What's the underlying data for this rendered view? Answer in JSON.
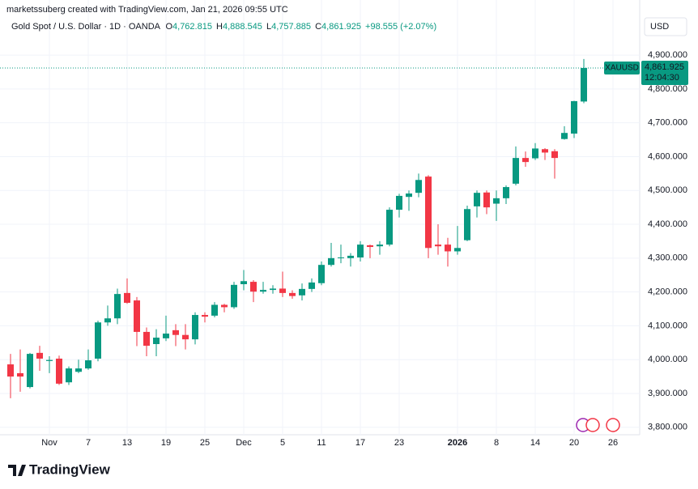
{
  "attribution": "marketssuberg created with TradingView.com, Jan 21, 2026 09:55 UTC",
  "currency": "USD",
  "brand": "TradingView",
  "legend": {
    "symbol": "Gold Spot / U.S. Dollar · 1D · OANDA",
    "open_key": "O",
    "open": "4,762.815",
    "high_key": "H",
    "high": "4,888.545",
    "low_key": "L",
    "low": "4,757.885",
    "close_key": "C",
    "close": "4,861.925",
    "change": "+98.555 (+2.07%)"
  },
  "price_tag": {
    "symbol": "XAUUSD",
    "price": "4,861.925",
    "countdown": "12:04:30"
  },
  "chart_data": {
    "type": "candlestick",
    "categories": [
      null,
      null,
      null,
      null,
      "Nov",
      null,
      null,
      null,
      "7",
      null,
      null,
      null,
      "13",
      null,
      null,
      null,
      "19",
      null,
      null,
      null,
      "25",
      null,
      null,
      null,
      "Dec",
      null,
      null,
      null,
      "5",
      null,
      null,
      null,
      "11",
      null,
      null,
      null,
      "17",
      null,
      null,
      null,
      "23",
      null,
      null,
      null,
      null,
      null,
      "2026",
      null,
      null,
      null,
      "8",
      null,
      null,
      null,
      "14",
      null,
      null,
      null,
      "20",
      null,
      null,
      null,
      "26"
    ],
    "open": [
      3986,
      3960,
      3919,
      4020,
      3996,
      4003,
      3933,
      3964,
      3974,
      4003,
      4110,
      4122,
      4197,
      4175,
      4082,
      4046,
      4063,
      4087,
      4073,
      4060,
      4132,
      4130,
      4162,
      4155,
      4223,
      4230,
      4201,
      4206,
      4210,
      4197,
      4190,
      4209,
      4226,
      4280,
      4300,
      4300,
      4302,
      4338,
      4335,
      4340,
      4443,
      4481,
      4493,
      4541,
      4340,
      4340,
      4320,
      4353,
      4453,
      4494,
      4461,
      4477,
      4520,
      4596,
      4595,
      4622,
      4616,
      4652,
      4668,
      4762.815,
      null,
      null,
      null
    ],
    "high": [
      4017,
      4030,
      4020,
      4041,
      4010,
      4012,
      3980,
      4000,
      4030,
      4115,
      4160,
      4210,
      4240,
      4185,
      4095,
      4090,
      4130,
      4105,
      4105,
      4140,
      4140,
      4170,
      4165,
      4230,
      4265,
      4235,
      4230,
      4220,
      4260,
      4205,
      4225,
      4240,
      4290,
      4345,
      4340,
      4315,
      4350,
      4340,
      4350,
      4450,
      4490,
      4500,
      4550,
      4545,
      4400,
      4360,
      4395,
      4455,
      4500,
      4500,
      4500,
      4515,
      4630,
      4615,
      4640,
      4625,
      4622,
      4690,
      4765,
      4888.545,
      null,
      null,
      null
    ],
    "low": [
      3886,
      3905,
      3915,
      3967,
      3960,
      3925,
      3925,
      3960,
      3970,
      3995,
      4100,
      4105,
      4165,
      4040,
      4010,
      4010,
      4055,
      4040,
      4030,
      4045,
      4110,
      4125,
      4140,
      4150,
      4205,
      4170,
      4195,
      4195,
      4185,
      4180,
      4175,
      4200,
      4220,
      4275,
      4285,
      4275,
      4290,
      4300,
      4310,
      4335,
      4420,
      4440,
      4480,
      4300,
      4310,
      4275,
      4310,
      4350,
      4420,
      4430,
      4410,
      4460,
      4515,
      4570,
      4590,
      4590,
      4535,
      4650,
      4655,
      4757.885,
      null,
      null,
      null
    ],
    "close": [
      3950,
      3950,
      4017,
      4003,
      3999,
      3929,
      3974,
      3974,
      3998,
      4110,
      4122,
      4194,
      4168,
      4082,
      4041,
      4065,
      4077,
      4073,
      4060,
      4132,
      4127,
      4162,
      4155,
      4221,
      4232,
      4201,
      4206,
      4210,
      4197,
      4188,
      4209,
      4228,
      4280,
      4300,
      4302,
      4307,
      4340,
      4333,
      4340,
      4443,
      4484,
      4491,
      4531,
      4330,
      4335,
      4320,
      4330,
      4445,
      4493,
      4450,
      4477,
      4510,
      4596,
      4584,
      4624,
      4612,
      4596,
      4670,
      4764,
      4861.925,
      null,
      null,
      null
    ],
    "up_color": "#089981",
    "down_color": "#f23645",
    "ylim": [
      3778,
      5015
    ],
    "yticks": [
      {
        "value": 3800,
        "label": "3,800.000"
      },
      {
        "value": 3900,
        "label": "3,900.000"
      },
      {
        "value": 4000,
        "label": "4,000.000"
      },
      {
        "value": 4100,
        "label": "4,100.000"
      },
      {
        "value": 4200,
        "label": "4,200.000"
      },
      {
        "value": 4300,
        "label": "4,300.000"
      },
      {
        "value": 4400,
        "label": "4,400.000"
      },
      {
        "value": 4500,
        "label": "4,500.000"
      },
      {
        "value": 4600,
        "label": "4,600.000"
      },
      {
        "value": 4700,
        "label": "4,700.000"
      },
      {
        "value": 4800,
        "label": "4,800.000"
      },
      {
        "value": 4900,
        "label": "4,900.000"
      }
    ],
    "grid": true
  }
}
